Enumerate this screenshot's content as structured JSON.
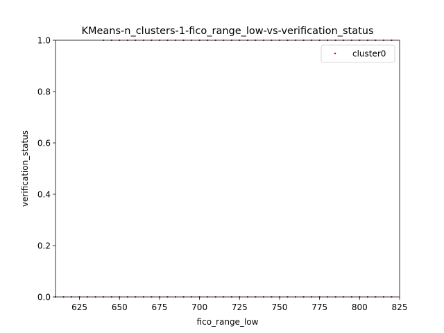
{
  "chart_data": {
    "type": "scatter",
    "title": "KMeans-n_clusters-1-fico_range_low-vs-verification_status",
    "xlabel": "fico_range_low",
    "ylabel": "verification_status",
    "xlim": [
      610,
      825
    ],
    "ylim": [
      0.0,
      1.0
    ],
    "x_ticks": [
      625,
      650,
      675,
      700,
      725,
      750,
      775,
      800,
      825
    ],
    "y_ticks": [
      "0.0",
      "0.2",
      "0.4",
      "0.6",
      "0.8",
      "1.0"
    ],
    "grid": false,
    "legend_position": "top-right",
    "series": [
      {
        "name": "cluster0",
        "color": "#ff0000",
        "points": [
          [
            610,
            0
          ],
          [
            615,
            0
          ],
          [
            620,
            0
          ],
          [
            625,
            0
          ],
          [
            630,
            0
          ],
          [
            635,
            0
          ],
          [
            640,
            0
          ],
          [
            645,
            0
          ],
          [
            650,
            0
          ],
          [
            655,
            0
          ],
          [
            660,
            0
          ],
          [
            665,
            0
          ],
          [
            670,
            0
          ],
          [
            675,
            0
          ],
          [
            680,
            0
          ],
          [
            685,
            0
          ],
          [
            690,
            0
          ],
          [
            695,
            0
          ],
          [
            700,
            0
          ],
          [
            705,
            0
          ],
          [
            710,
            0
          ],
          [
            715,
            0
          ],
          [
            720,
            0
          ],
          [
            725,
            0
          ],
          [
            730,
            0
          ],
          [
            735,
            0
          ],
          [
            740,
            0
          ],
          [
            745,
            0
          ],
          [
            750,
            0
          ],
          [
            755,
            0
          ],
          [
            760,
            0
          ],
          [
            765,
            0
          ],
          [
            770,
            0
          ],
          [
            775,
            0
          ],
          [
            780,
            0
          ],
          [
            785,
            0
          ],
          [
            790,
            0
          ],
          [
            795,
            0
          ],
          [
            800,
            0
          ],
          [
            805,
            0
          ],
          [
            810,
            0
          ],
          [
            815,
            0
          ],
          [
            820,
            0
          ],
          [
            640,
            1
          ],
          [
            645,
            1
          ],
          [
            650,
            1
          ],
          [
            655,
            1
          ],
          [
            660,
            1
          ],
          [
            665,
            1
          ],
          [
            670,
            1
          ],
          [
            675,
            1
          ],
          [
            680,
            1
          ],
          [
            685,
            1
          ],
          [
            690,
            1
          ],
          [
            695,
            1
          ],
          [
            700,
            1
          ],
          [
            705,
            1
          ],
          [
            710,
            1
          ],
          [
            715,
            1
          ],
          [
            720,
            1
          ],
          [
            725,
            1
          ],
          [
            730,
            1
          ],
          [
            735,
            1
          ],
          [
            740,
            1
          ],
          [
            745,
            1
          ],
          [
            750,
            1
          ],
          [
            755,
            1
          ],
          [
            760,
            1
          ],
          [
            765,
            1
          ],
          [
            770,
            1
          ],
          [
            775,
            1
          ],
          [
            780,
            1
          ],
          [
            785,
            1
          ],
          [
            790,
            1
          ],
          [
            795,
            1
          ],
          [
            800,
            1
          ],
          [
            805,
            1
          ],
          [
            810,
            1
          ],
          [
            815,
            1
          ],
          [
            820,
            1
          ]
        ]
      }
    ]
  }
}
